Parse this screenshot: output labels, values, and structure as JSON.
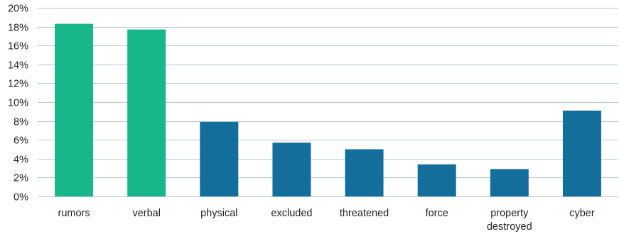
{
  "chart_data": {
    "type": "bar",
    "categories": [
      "rumors",
      "verbal",
      "physical",
      "excluded",
      "threatened",
      "force",
      "property destroyed",
      "cyber"
    ],
    "category_lines": [
      [
        "rumors"
      ],
      [
        "verbal"
      ],
      [
        "physical"
      ],
      [
        "excluded"
      ],
      [
        "threatened"
      ],
      [
        "force"
      ],
      [
        "property",
        "destroyed"
      ],
      [
        "cyber"
      ]
    ],
    "values": [
      18.3,
      17.7,
      7.9,
      5.7,
      5.0,
      3.4,
      2.9,
      9.1
    ],
    "bar_colors": [
      "#17b78b",
      "#17b78b",
      "#136e9c",
      "#136e9c",
      "#136e9c",
      "#136e9c",
      "#136e9c",
      "#136e9c"
    ],
    "ylim": [
      0,
      20
    ],
    "yticks": [
      0,
      2,
      4,
      6,
      8,
      10,
      12,
      14,
      16,
      18,
      20
    ],
    "ytick_labels": [
      "0%",
      "2%",
      "4%",
      "6%",
      "8%",
      "10%",
      "12%",
      "14%",
      "16%",
      "18%",
      "20%"
    ],
    "grid": true,
    "title": "",
    "xlabel": "",
    "ylabel": ""
  }
}
